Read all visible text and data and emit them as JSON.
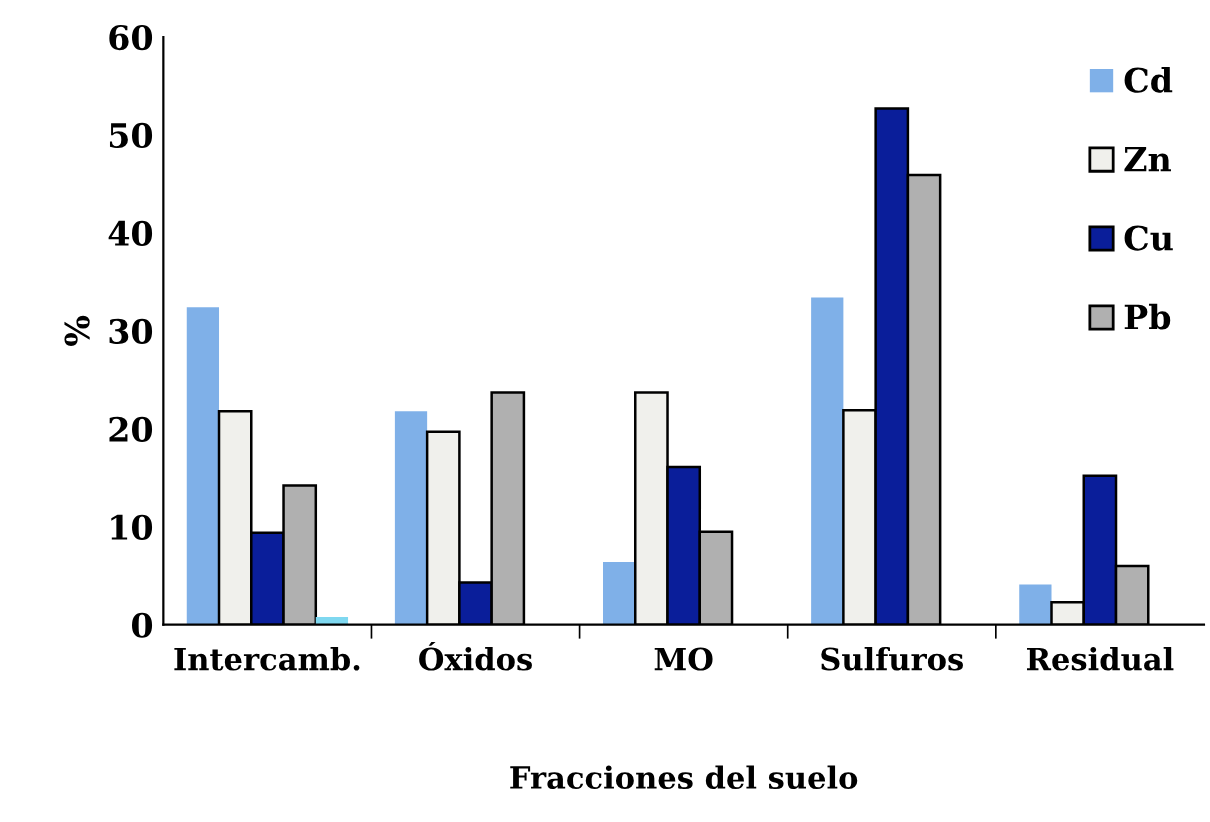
{
  "chart_data": {
    "type": "bar",
    "xlabel": "Fracciones del suelo",
    "ylabel": "%",
    "categories": [
      "Intercamb.",
      "Óxidos",
      "MO",
      "Sulfuros",
      "Residual"
    ],
    "series": [
      {
        "name": "Cd",
        "color": "#7fb0e8",
        "values": [
          32.4,
          21.8,
          6.4,
          33.4,
          4.1
        ]
      },
      {
        "name": "Zn",
        "color": "#f0f0ec",
        "values": [
          21.8,
          19.7,
          23.7,
          21.9,
          2.3
        ]
      },
      {
        "name": "Cu",
        "color": "#0a1e9a",
        "values": [
          9.4,
          4.3,
          16.1,
          52.7,
          15.2
        ]
      },
      {
        "name": "Pb",
        "color": "#b0b0b0",
        "values": [
          14.2,
          23.7,
          9.5,
          45.9,
          6.0
        ]
      },
      {
        "color": "#7fd8f0",
        "values": [
          0.8,
          null,
          null,
          null,
          null
        ]
      }
    ],
    "ylim": [
      0,
      60
    ],
    "yticks": [
      0,
      10,
      20,
      30,
      40,
      50,
      60
    ],
    "grid": false,
    "legend": "top right"
  }
}
